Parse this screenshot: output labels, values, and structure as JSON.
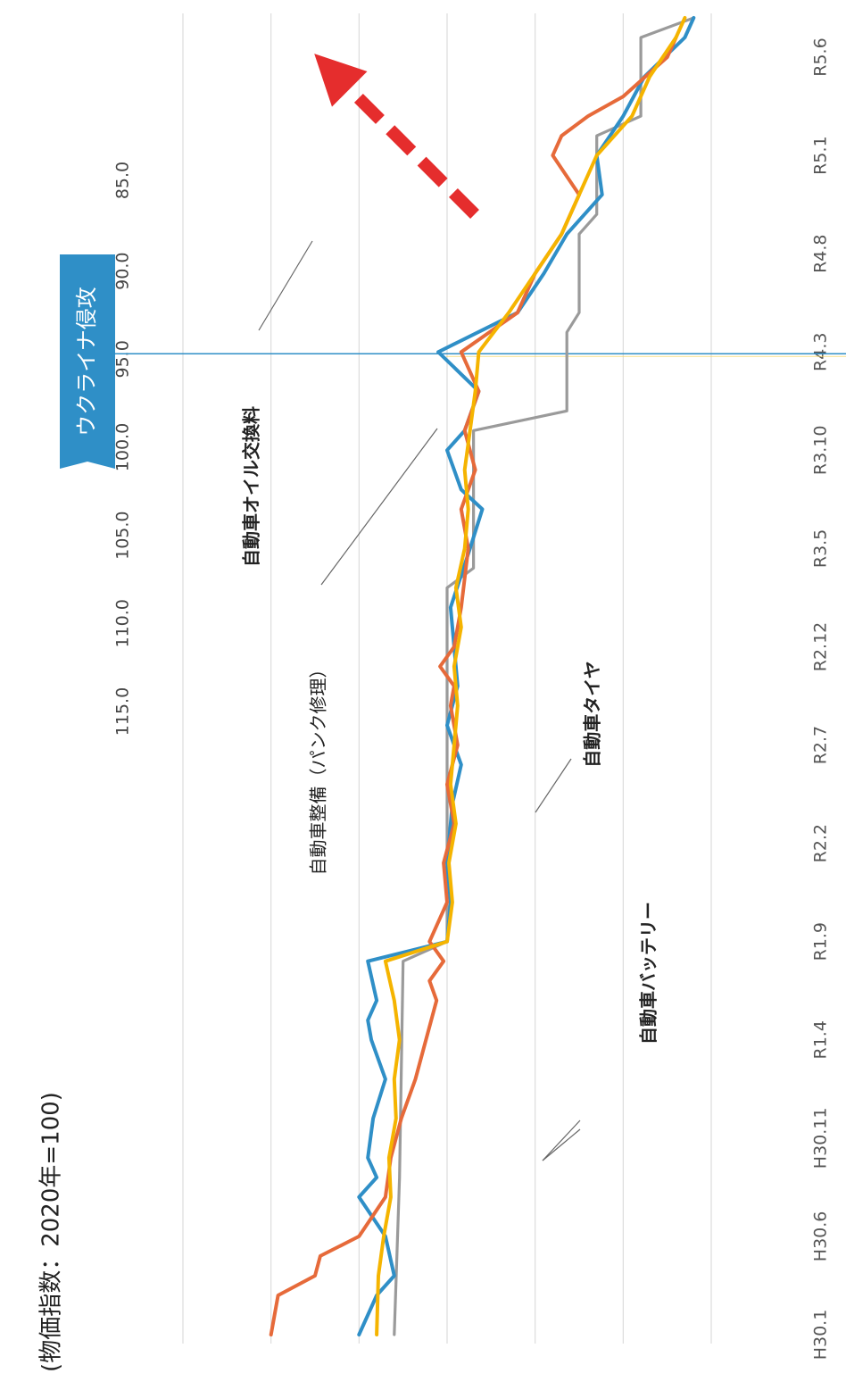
{
  "chart_data": {
    "type": "line",
    "unit_label": "(物価指数：2020年=100)",
    "ylim": [
      85,
      115
    ],
    "y_ticks": [
      "115.0",
      "110.0",
      "105.0",
      "100.0",
      "95.0",
      "90.0",
      "85.0"
    ],
    "y_tick_values": [
      115,
      110,
      105,
      100,
      95,
      90,
      85
    ],
    "x_tick_labels": [
      "H30.1",
      "H30.6",
      "H30.11",
      "R1.4",
      "R1.9",
      "R2.2",
      "R2.7",
      "R2.12",
      "R3.5",
      "R3.10",
      "R4.3",
      "R4.8",
      "R5.1",
      "R5.6"
    ],
    "x_tick_months": [
      0,
      5,
      10,
      15,
      20,
      25,
      30,
      35,
      40,
      45,
      50,
      55,
      60,
      65
    ],
    "event": {
      "label": "ウクライナ侵攻",
      "month": 50,
      "color": "#2f8fc7"
    },
    "trend_arrow_color": "#e52d2d",
    "series": [
      {
        "label": "自動車オイル交換料",
        "color": "#9a9a9a",
        "month": [
          0,
          8,
          19,
          20,
          38,
          39,
          46,
          47,
          51,
          52,
          56,
          57,
          61,
          62,
          66,
          67
        ],
        "values": [
          97.0,
          97.3,
          97.5,
          100.0,
          100.0,
          101.5,
          101.5,
          106.8,
          106.8,
          107.5,
          107.5,
          108.5,
          108.5,
          111.0,
          111.0,
          114.0
        ]
      },
      {
        "label": "自動車整備（パンク修理）",
        "color": "#2f8fc7",
        "month": [
          0,
          2,
          3,
          5,
          7,
          8,
          9,
          11,
          13,
          15,
          16,
          17,
          19,
          20,
          22,
          24,
          27,
          29,
          31,
          33,
          35,
          37,
          40,
          42,
          43,
          45,
          46,
          48,
          50,
          52,
          54,
          56,
          58,
          60,
          62,
          64,
          66,
          67
        ],
        "values": [
          95.0,
          96.0,
          97.0,
          96.5,
          95.0,
          96.0,
          95.5,
          95.8,
          96.5,
          95.7,
          95.5,
          96.0,
          95.5,
          100.0,
          100.2,
          100.0,
          100.3,
          100.8,
          100.0,
          100.6,
          100.4,
          100.2,
          101.3,
          102.0,
          100.8,
          100.0,
          101.0,
          101.8,
          99.5,
          104.0,
          105.5,
          106.8,
          108.8,
          108.5,
          110.0,
          111.2,
          113.5,
          114.0
        ]
      },
      {
        "label": "自動車タイヤ",
        "color": "#e66a3a",
        "month": [
          0,
          2,
          3,
          4,
          5,
          7,
          9,
          11,
          13,
          15,
          17,
          18,
          19,
          20,
          22,
          24,
          26,
          28,
          30,
          32,
          33,
          34,
          35,
          37,
          40,
          42,
          44,
          46,
          48,
          50,
          52,
          54,
          56,
          58,
          60,
          61,
          62,
          63,
          65,
          66
        ],
        "values": [
          90.0,
          90.4,
          92.5,
          92.8,
          95.0,
          96.5,
          96.8,
          97.4,
          98.2,
          98.8,
          99.4,
          99.0,
          99.8,
          99.0,
          100.0,
          99.8,
          100.4,
          100.0,
          100.6,
          100.2,
          100.4,
          99.6,
          100.4,
          100.8,
          101.2,
          100.8,
          101.6,
          101.0,
          101.8,
          100.8,
          104.0,
          105.0,
          106.5,
          107.5,
          106.0,
          106.5,
          108.0,
          110.0,
          112.5,
          113.0
        ]
      },
      {
        "label": "自動車バッテリー",
        "color": "#f5b400",
        "month": [
          0,
          3,
          5,
          7,
          9,
          11,
          13,
          15,
          17,
          19,
          20,
          22,
          24,
          26,
          28,
          30,
          32,
          34,
          36,
          38,
          40,
          42,
          44,
          46,
          48,
          50,
          52,
          54,
          56,
          58,
          60,
          62,
          64,
          66,
          67
        ],
        "values": [
          96.0,
          96.1,
          96.4,
          96.8,
          96.7,
          97.1,
          97.0,
          97.3,
          97.0,
          96.5,
          100.0,
          100.3,
          100.1,
          100.5,
          100.2,
          100.4,
          100.6,
          100.4,
          100.8,
          100.5,
          101.0,
          101.2,
          101.0,
          101.3,
          101.6,
          101.8,
          103.5,
          105.0,
          106.5,
          107.5,
          108.5,
          110.5,
          111.5,
          113.0,
          113.5
        ]
      }
    ]
  }
}
